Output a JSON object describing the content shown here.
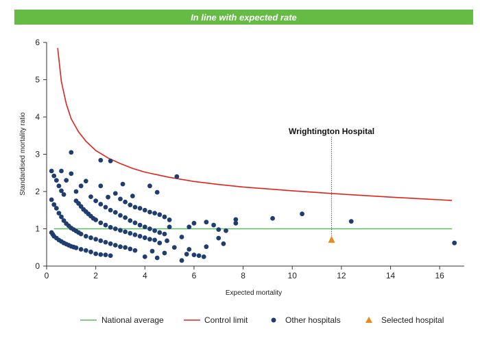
{
  "banner": {
    "text": "In line with expected rate",
    "color": "#66bb44"
  },
  "chart_data": {
    "type": "scatter",
    "xlabel": "Expected mortality",
    "ylabel": "Standardised mortality ratio",
    "xlim": [
      0,
      17
    ],
    "ylim": [
      0,
      6
    ],
    "xticks": [
      0,
      2,
      4,
      6,
      8,
      10,
      12,
      14,
      16
    ],
    "yticks": [
      0,
      1,
      2,
      3,
      4,
      5,
      6
    ],
    "grid": false,
    "legend_position": "bottom",
    "national_average": {
      "name": "National average",
      "value": 1,
      "x_range": [
        0.3,
        16.5
      ],
      "color": "#5cb85c"
    },
    "control_limit": {
      "name": "Control limit",
      "color": "#e32119",
      "points": [
        [
          0.45,
          5.85
        ],
        [
          0.6,
          4.95
        ],
        [
          0.8,
          4.35
        ],
        [
          1.0,
          3.95
        ],
        [
          1.3,
          3.6
        ],
        [
          1.6,
          3.35
        ],
        [
          2.0,
          3.1
        ],
        [
          2.5,
          2.9
        ],
        [
          3.0,
          2.75
        ],
        [
          3.5,
          2.62
        ],
        [
          4.0,
          2.52
        ],
        [
          5.0,
          2.38
        ],
        [
          6.0,
          2.27
        ],
        [
          7.0,
          2.19
        ],
        [
          8.0,
          2.12
        ],
        [
          10.0,
          2.02
        ],
        [
          12.0,
          1.93
        ],
        [
          14.0,
          1.85
        ],
        [
          16.5,
          1.76
        ]
      ]
    },
    "selected_hospital": {
      "name": "Selected hospital",
      "label": "Wrightington Hospital",
      "x": 11.6,
      "y": 0.7,
      "color": "#e88a1b"
    },
    "other_hospitals": {
      "name": "Other hospitals",
      "color": "#1f3d6e",
      "points": [
        [
          0.2,
          0.9
        ],
        [
          0.25,
          0.85
        ],
        [
          0.3,
          0.8
        ],
        [
          0.4,
          0.75
        ],
        [
          0.5,
          0.7
        ],
        [
          0.6,
          0.66
        ],
        [
          0.7,
          0.62
        ],
        [
          0.8,
          0.59
        ],
        [
          0.9,
          0.56
        ],
        [
          1.0,
          0.53
        ],
        [
          1.1,
          0.51
        ],
        [
          1.2,
          0.49
        ],
        [
          1.4,
          0.45
        ],
        [
          1.6,
          0.42
        ],
        [
          1.8,
          0.38
        ],
        [
          2.0,
          0.33
        ],
        [
          2.2,
          0.31
        ],
        [
          2.4,
          0.3
        ],
        [
          2.6,
          0.28
        ],
        [
          0.2,
          1.78
        ],
        [
          0.3,
          1.65
        ],
        [
          0.4,
          1.55
        ],
        [
          0.5,
          1.42
        ],
        [
          0.6,
          1.32
        ],
        [
          0.7,
          1.22
        ],
        [
          0.8,
          1.14
        ],
        [
          0.9,
          1.08
        ],
        [
          1.0,
          1.02
        ],
        [
          1.1,
          0.98
        ],
        [
          1.2,
          0.94
        ],
        [
          1.3,
          0.9
        ],
        [
          1.4,
          0.86
        ],
        [
          1.6,
          0.8
        ],
        [
          1.8,
          0.76
        ],
        [
          2.0,
          0.72
        ],
        [
          2.2,
          0.68
        ],
        [
          2.4,
          0.64
        ],
        [
          2.6,
          0.6
        ],
        [
          2.8,
          0.56
        ],
        [
          3.0,
          0.52
        ],
        [
          3.2,
          0.5
        ],
        [
          3.4,
          0.46
        ],
        [
          3.6,
          0.42
        ],
        [
          1.2,
          1.75
        ],
        [
          1.3,
          1.68
        ],
        [
          1.4,
          1.6
        ],
        [
          1.5,
          1.52
        ],
        [
          1.6,
          1.46
        ],
        [
          1.7,
          1.4
        ],
        [
          1.8,
          1.34
        ],
        [
          1.9,
          1.28
        ],
        [
          2.0,
          1.24
        ],
        [
          2.2,
          1.16
        ],
        [
          2.4,
          1.1
        ],
        [
          2.6,
          1.04
        ],
        [
          2.8,
          1.0
        ],
        [
          3.0,
          0.96
        ],
        [
          3.2,
          0.92
        ],
        [
          3.4,
          0.88
        ],
        [
          3.6,
          0.84
        ],
        [
          3.8,
          0.8
        ],
        [
          4.0,
          0.76
        ],
        [
          4.2,
          0.72
        ],
        [
          4.4,
          0.7
        ],
        [
          2.0,
          1.75
        ],
        [
          2.2,
          1.66
        ],
        [
          2.4,
          1.58
        ],
        [
          2.6,
          1.5
        ],
        [
          2.8,
          1.44
        ],
        [
          3.0,
          1.36
        ],
        [
          3.2,
          1.3
        ],
        [
          3.4,
          1.22
        ],
        [
          3.6,
          1.16
        ],
        [
          3.8,
          1.1
        ],
        [
          4.0,
          1.05
        ],
        [
          4.2,
          1.0
        ],
        [
          4.4,
          0.95
        ],
        [
          4.6,
          0.9
        ],
        [
          4.8,
          0.86
        ],
        [
          3.0,
          1.8
        ],
        [
          3.2,
          1.72
        ],
        [
          3.4,
          1.64
        ],
        [
          3.6,
          1.58
        ],
        [
          3.8,
          1.55
        ],
        [
          4.0,
          1.5
        ],
        [
          4.2,
          1.45
        ],
        [
          4.4,
          1.42
        ],
        [
          4.6,
          1.38
        ],
        [
          4.8,
          1.32
        ],
        [
          5.0,
          1.24
        ],
        [
          0.2,
          2.55
        ],
        [
          0.3,
          2.42
        ],
        [
          0.4,
          2.3
        ],
        [
          0.5,
          2.15
        ],
        [
          0.6,
          2.02
        ],
        [
          0.6,
          2.55
        ],
        [
          0.7,
          1.92
        ],
        [
          0.8,
          2.3
        ],
        [
          1.0,
          3.05
        ],
        [
          1.0,
          2.48
        ],
        [
          1.2,
          2.0
        ],
        [
          1.4,
          2.15
        ],
        [
          1.6,
          2.28
        ],
        [
          2.2,
          2.84
        ],
        [
          2.6,
          2.82
        ],
        [
          2.2,
          2.15
        ],
        [
          3.1,
          2.2
        ],
        [
          4.2,
          2.15
        ],
        [
          4.5,
          1.98
        ],
        [
          5.3,
          2.4
        ],
        [
          2.8,
          1.95
        ],
        [
          1.8,
          1.86
        ],
        [
          2.5,
          1.85
        ],
        [
          3.5,
          1.88
        ],
        [
          4.0,
          0.25
        ],
        [
          4.3,
          0.4
        ],
        [
          4.5,
          0.22
        ],
        [
          4.8,
          0.35
        ],
        [
          5.2,
          0.5
        ],
        [
          5.5,
          0.15
        ],
        [
          5.7,
          0.32
        ],
        [
          6.0,
          0.3
        ],
        [
          6.2,
          0.28
        ],
        [
          6.4,
          0.25
        ],
        [
          6.5,
          0.52
        ],
        [
          7.0,
          0.75
        ],
        [
          7.2,
          0.6
        ],
        [
          5.8,
          0.45
        ],
        [
          5.5,
          0.78
        ],
        [
          5.8,
          1.05
        ],
        [
          6.0,
          1.15
        ],
        [
          6.5,
          1.18
        ],
        [
          6.8,
          1.1
        ],
        [
          7.0,
          0.98
        ],
        [
          7.3,
          0.95
        ],
        [
          7.7,
          1.25
        ],
        [
          7.7,
          1.15
        ],
        [
          9.2,
          1.28
        ],
        [
          10.4,
          1.4
        ],
        [
          12.4,
          1.2
        ],
        [
          16.6,
          0.62
        ],
        [
          5.0,
          1.05
        ],
        [
          4.9,
          0.68
        ],
        [
          4.6,
          0.62
        ]
      ]
    }
  }
}
